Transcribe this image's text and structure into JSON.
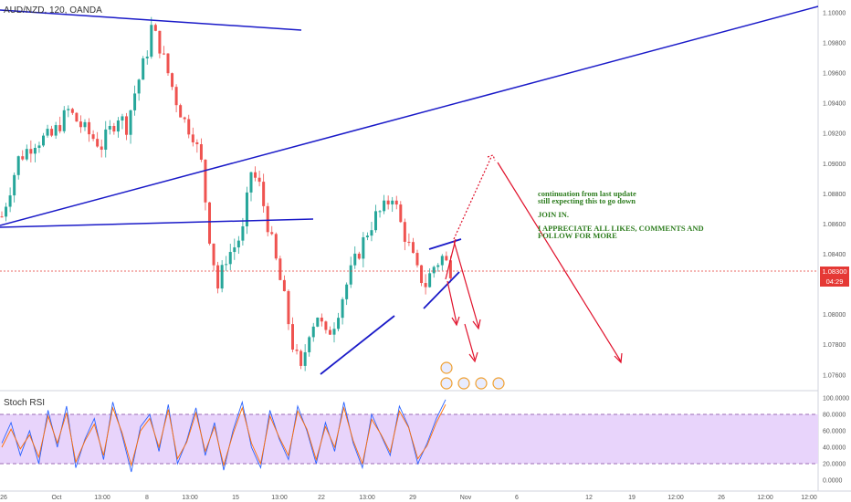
{
  "header": {
    "symbol": "AUD/NZD, 120, OANDA"
  },
  "indicator": {
    "title": "Stoch RSI"
  },
  "annotations": {
    "line1": "continuation from last update",
    "line2": "still expecting this to go down",
    "line3": "JOIN IN.",
    "line4": "I APPRECIATE ALL LIKES, COMMENTS AND",
    "line5": "FOLLOW FOR MORE"
  },
  "current_price": {
    "value": "1.08300",
    "countdown": "04:29",
    "color": "#e53935"
  },
  "colors": {
    "up": "#26a69a",
    "down": "#ef5350",
    "trendline": "#1a1ac8",
    "projection": "#e0102a",
    "stoch_band": "#e8d4fb",
    "stoch_k": "#2962ff",
    "stoch_d": "#ff6d00"
  },
  "chart_data": [
    {
      "type": "candlestick",
      "price_axis": {
        "labels": [
          "1.10000",
          "1.09800",
          "1.09600",
          "1.09400",
          "1.09200",
          "1.09000",
          "1.08800",
          "1.08600",
          "1.08400",
          "1.08200",
          "1.08000",
          "1.07800",
          "1.07600"
        ],
        "range": [
          1.0752,
          1.1006
        ]
      },
      "time_axis": {
        "labels": [
          "26",
          "Oct",
          "13:00",
          "8",
          "13:00",
          "15",
          "13:00",
          "22",
          "13:00",
          "29",
          "Nov",
          "6",
          "12",
          "19",
          "12:00",
          "26",
          "12:00",
          "12:00"
        ]
      },
      "approx_path": [
        [
          0,
          1.0865
        ],
        [
          4,
          1.0903
        ],
        [
          8,
          1.0915
        ],
        [
          12,
          1.0918
        ],
        [
          16,
          1.0935
        ],
        [
          20,
          1.0922
        ],
        [
          24,
          1.0912
        ],
        [
          28,
          1.0932
        ],
        [
          30,
          1.0925
        ],
        [
          32,
          1.0947
        ],
        [
          34,
          1.0965
        ],
        [
          35,
          1.0975
        ],
        [
          36,
          1.099
        ],
        [
          38,
          1.0978
        ],
        [
          40,
          1.096
        ],
        [
          42,
          1.0942
        ],
        [
          44,
          1.0928
        ],
        [
          46,
          1.092
        ],
        [
          48,
          1.09
        ],
        [
          50,
          1.0852
        ],
        [
          52,
          1.0818
        ],
        [
          54,
          1.0838
        ],
        [
          56,
          1.0845
        ],
        [
          58,
          1.0855
        ],
        [
          60,
          1.0895
        ],
        [
          62,
          1.0885
        ],
        [
          64,
          1.086
        ],
        [
          66,
          1.0835
        ],
        [
          68,
          1.081
        ],
        [
          70,
          1.078
        ],
        [
          72,
          1.0762
        ],
        [
          74,
          1.079
        ],
        [
          76,
          1.08
        ],
        [
          78,
          1.0785
        ],
        [
          80,
          1.0795
        ],
        [
          82,
          1.0812
        ],
        [
          84,
          1.0828
        ],
        [
          86,
          1.0842
        ],
        [
          88,
          1.0855
        ],
        [
          90,
          1.0865
        ],
        [
          92,
          1.087
        ],
        [
          94,
          1.088
        ],
        [
          96,
          1.086
        ],
        [
          98,
          1.0845
        ],
        [
          100,
          1.0828
        ],
        [
          102,
          1.082
        ],
        [
          104,
          1.0832
        ],
        [
          106,
          1.0838
        ],
        [
          108,
          1.083
        ]
      ],
      "last_price": 1.083
    },
    {
      "type": "line",
      "title": "Stoch RSI",
      "y_axis_labels": [
        "100.0000",
        "80.0000",
        "60.0000",
        "40.0000",
        "20.0000",
        "0.0000"
      ],
      "ylim": [
        0,
        100
      ],
      "bands": [
        20,
        80
      ],
      "series": [
        {
          "values": [
            45,
            70,
            30,
            60,
            20,
            85,
            40,
            90,
            15,
            50,
            75,
            25,
            95,
            55,
            10,
            65,
            80,
            35,
            92,
            20,
            48,
            88,
            30,
            70,
            12,
            60,
            95,
            40,
            15,
            85,
            50,
            25,
            90,
            60,
            20,
            70,
            35,
            95,
            45,
            15,
            80,
            55,
            30,
            90,
            65,
            20,
            45,
            75,
            98
          ]
        },
        {
          "values": [
            40,
            62,
            38,
            55,
            28,
            78,
            45,
            82,
            22,
            48,
            68,
            30,
            88,
            58,
            18,
            60,
            75,
            40,
            86,
            26,
            46,
            82,
            35,
            65,
            18,
            56,
            88,
            45,
            20,
            78,
            52,
            30,
            84,
            62,
            25,
            65,
            40,
            88,
            48,
            20,
            74,
            56,
            34,
            84,
            64,
            26,
            42,
            70,
            92
          ]
        }
      ]
    }
  ]
}
